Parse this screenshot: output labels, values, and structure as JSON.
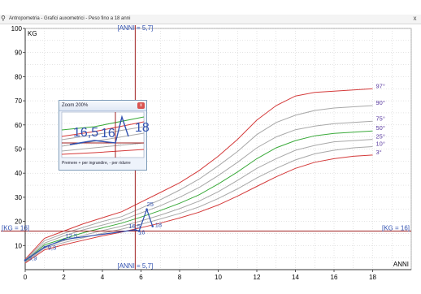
{
  "window": {
    "title": "Antropometria - Grafici auxometrici - Peso fino a 18 anni",
    "close_label": "x"
  },
  "chart_data": {
    "type": "line",
    "xlabel": "ANNI",
    "ylabel": "KG",
    "xlim": [
      0,
      20
    ],
    "ylim": [
      0,
      100
    ],
    "x_ticks": [
      0,
      2,
      4,
      6,
      8,
      10,
      12,
      14,
      16,
      18
    ],
    "y_ticks": [
      10,
      20,
      30,
      40,
      50,
      60,
      70,
      80,
      90,
      100
    ],
    "grid": true,
    "x": [
      0,
      1,
      2,
      3,
      4,
      5,
      6,
      7,
      8,
      9,
      10,
      11,
      12,
      13,
      14,
      15,
      16,
      17,
      18
    ],
    "series": [
      {
        "name": "97°",
        "color": "#d43a3a",
        "values": [
          4.3,
          13,
          16,
          19,
          21.5,
          24,
          28,
          32,
          36,
          41,
          47,
          54,
          62,
          68,
          72,
          73.5,
          74,
          74.5,
          75
        ]
      },
      {
        "name": "90°",
        "color": "#a8a8a8",
        "values": [
          4,
          12,
          15,
          17.5,
          20,
          22,
          25.5,
          29,
          33,
          37.5,
          43,
          49,
          56,
          61,
          64,
          66,
          67,
          67.5,
          68
        ]
      },
      {
        "name": "75°",
        "color": "#a8a8a8",
        "values": [
          3.7,
          11,
          14,
          16.5,
          18.5,
          20.5,
          23.5,
          26.5,
          30,
          34,
          39,
          44.5,
          50.5,
          55,
          58,
          59.5,
          60.5,
          61,
          61.5
        ]
      },
      {
        "name": "50°",
        "color": "#3aaa3a",
        "values": [
          3.4,
          10.3,
          12.8,
          15.3,
          17.3,
          19.3,
          21.8,
          24.5,
          27.5,
          31,
          35.5,
          40.5,
          46,
          50.5,
          53.5,
          55.5,
          56.5,
          57,
          57.5
        ]
      },
      {
        "name": "25°",
        "color": "#a8a8a8",
        "values": [
          3.2,
          9.6,
          12,
          14.2,
          16.2,
          18,
          20.2,
          22.6,
          25.3,
          28.4,
          32.3,
          37,
          42,
          46,
          49.5,
          51.5,
          53,
          53.5,
          54
        ]
      },
      {
        "name": "10°",
        "color": "#a8a8a8",
        "values": [
          3,
          9,
          11.2,
          13.2,
          15.1,
          16.8,
          18.8,
          21,
          23.3,
          26,
          29.5,
          33.5,
          38,
          42,
          45.5,
          48,
          49.5,
          50.5,
          51
        ]
      },
      {
        "name": "3°",
        "color": "#d43a3a",
        "values": [
          2.7,
          8.2,
          10.3,
          12.2,
          14,
          15.6,
          17.4,
          19.3,
          21.4,
          23.8,
          26.8,
          30.5,
          34.5,
          38.5,
          42,
          44.5,
          46,
          47,
          47.5
        ]
      }
    ],
    "patient": {
      "color": "#3050b0",
      "points": [
        {
          "x": 0,
          "y": 3.9,
          "label": "3,9"
        },
        {
          "x": 1,
          "y": 9.3,
          "label": "9,3"
        },
        {
          "x": 2,
          "y": 12.5,
          "label": "12,5"
        },
        {
          "x": 5.7,
          "y": 16.5,
          "label": "16,5"
        },
        {
          "x": 5.9,
          "y": 16,
          "label": "16"
        },
        {
          "x": 6.3,
          "y": 25,
          "label": "25"
        },
        {
          "x": 6.6,
          "y": 18,
          "label": "18"
        }
      ]
    },
    "reference_x": {
      "value": 5.7,
      "label": "[ANNI = 5,7]"
    },
    "reference_y": {
      "value": 16,
      "label": "[KG = 16]"
    }
  },
  "zoom": {
    "title": "Zoom 200%",
    "close_label": "x",
    "big_labels": [
      "16,5",
      "16",
      "18"
    ],
    "footer": "Premere + per ingrandire, - per ridurre"
  }
}
